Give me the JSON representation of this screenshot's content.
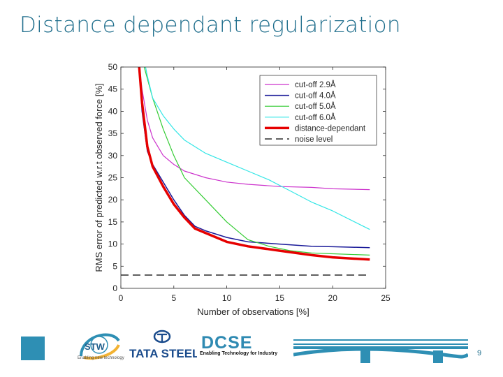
{
  "slide": {
    "title": "Distance dependant regularization",
    "page_number": "9"
  },
  "logos": {
    "stw": "STW",
    "stw_tagline": "Enabling new technology",
    "tata": "TATA STEEL",
    "dcse_title": "DCSE",
    "dcse_tagline": "Enabling Technology for Industry"
  },
  "colors": {
    "title": "#1f6e8c",
    "accent": "#2e8fb4",
    "series": [
      "#cc33cc",
      "#1a1a99",
      "#33cc33",
      "#33e6e6",
      "#e60000",
      "#000000"
    ]
  },
  "chart_data": {
    "type": "line",
    "title": "",
    "xlabel": "Number of observations [%]",
    "ylabel": "RMS error of predicted w.r.t observed force [%]",
    "xlim": [
      0,
      25
    ],
    "ylim": [
      0,
      50
    ],
    "xticks": [
      0,
      5,
      10,
      15,
      20,
      25
    ],
    "yticks": [
      0,
      5,
      10,
      15,
      20,
      25,
      30,
      35,
      40,
      45,
      50
    ],
    "grid": false,
    "legend_position": "top-right",
    "series": [
      {
        "name": "cut-off 2.9Å",
        "color": "#cc33cc",
        "style": "solid",
        "width": 1.2,
        "points": [
          [
            1.2,
            60
          ],
          [
            2,
            45
          ],
          [
            2.5,
            38
          ],
          [
            3,
            34
          ],
          [
            4,
            30
          ],
          [
            5,
            28
          ],
          [
            6,
            26.5
          ],
          [
            8,
            25
          ],
          [
            10,
            24
          ],
          [
            12,
            23.5
          ],
          [
            15,
            23
          ],
          [
            18,
            22.8
          ],
          [
            20,
            22.5
          ],
          [
            23.5,
            22.3
          ]
        ]
      },
      {
        "name": "cut-off 4.0Å",
        "color": "#1a1a99",
        "style": "solid",
        "width": 1.5,
        "points": [
          [
            1.5,
            60
          ],
          [
            2,
            40
          ],
          [
            2.5,
            31
          ],
          [
            3,
            28
          ],
          [
            4,
            24
          ],
          [
            5,
            20
          ],
          [
            6,
            16.5
          ],
          [
            7,
            14
          ],
          [
            8,
            13
          ],
          [
            10,
            11.5
          ],
          [
            12,
            10.5
          ],
          [
            15,
            10
          ],
          [
            18,
            9.5
          ],
          [
            20,
            9.4
          ],
          [
            23.5,
            9.2
          ]
        ]
      },
      {
        "name": "cut-off 5.0Å",
        "color": "#33cc33",
        "style": "solid",
        "width": 1.2,
        "points": [
          [
            1.8,
            60
          ],
          [
            2.2,
            50
          ],
          [
            3,
            43
          ],
          [
            4,
            36
          ],
          [
            5,
            30
          ],
          [
            6,
            25
          ],
          [
            8,
            20
          ],
          [
            10,
            15
          ],
          [
            12,
            11
          ],
          [
            14,
            9.5
          ],
          [
            16,
            8.5
          ],
          [
            18,
            8
          ],
          [
            20,
            7.8
          ],
          [
            23.5,
            7.5
          ]
        ]
      },
      {
        "name": "cut-off 6.0Å",
        "color": "#33e6e6",
        "style": "solid",
        "width": 1.2,
        "points": [
          [
            1.5,
            60
          ],
          [
            2.5,
            48
          ],
          [
            3,
            43
          ],
          [
            4,
            39
          ],
          [
            5,
            36
          ],
          [
            6,
            33.5
          ],
          [
            8,
            30.5
          ],
          [
            10,
            28.5
          ],
          [
            12,
            26.5
          ],
          [
            14,
            24.5
          ],
          [
            16,
            22
          ],
          [
            18,
            19.5
          ],
          [
            20,
            17.5
          ],
          [
            23.5,
            13.3
          ]
        ]
      },
      {
        "name": "distance-dependant",
        "color": "#e60000",
        "style": "solid",
        "width": 3.5,
        "points": [
          [
            1.4,
            60
          ],
          [
            2,
            42
          ],
          [
            2.5,
            32
          ],
          [
            3,
            27.5
          ],
          [
            4,
            23
          ],
          [
            5,
            19
          ],
          [
            6,
            16
          ],
          [
            7,
            13.5
          ],
          [
            8,
            12.5
          ],
          [
            10,
            10.5
          ],
          [
            12,
            9.5
          ],
          [
            15,
            8.5
          ],
          [
            18,
            7.5
          ],
          [
            20,
            7
          ],
          [
            23.5,
            6.5
          ]
        ]
      },
      {
        "name": "noise level",
        "color": "#000000",
        "style": "dashed",
        "width": 1.3,
        "points": [
          [
            0,
            3
          ],
          [
            23.5,
            3
          ]
        ]
      }
    ]
  }
}
